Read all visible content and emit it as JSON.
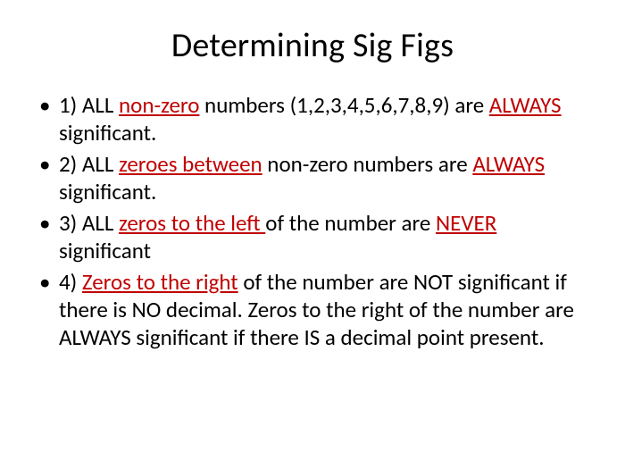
{
  "colors": {
    "background": "#ffffff",
    "text": "#000000",
    "emphasis": "#c00000"
  },
  "typography": {
    "font_family": "Calibri, Arial, sans-serif",
    "title_fontsize": 38,
    "body_fontsize": 25,
    "line_height": 1.24
  },
  "title": "Determining Sig Figs",
  "bullets": [
    {
      "pre": "1) ALL ",
      "em1": "non-zero",
      "mid1": " numbers (1,2,3,4,5,6,7,8,9) are ",
      "em2": "ALWAYS",
      "post": " significant."
    },
    {
      "pre": "2) ALL ",
      "em1": "zeroes between",
      "mid1": " non-zero numbers are ",
      "em2": "ALWAYS",
      "post": " significant."
    },
    {
      "pre": "3) ALL ",
      "em1": "zeros to the left ",
      "mid1": "of the number are ",
      "em2": "NEVER",
      "post": " significant"
    },
    {
      "pre": "4) ",
      "em1": "Zeros to the right",
      "mid1": " of the number are NOT significant if there is NO decimal.  Zeros to the right of the number are ALWAYS significant if there IS a decimal point present.",
      "em2": "",
      "post": ""
    }
  ]
}
